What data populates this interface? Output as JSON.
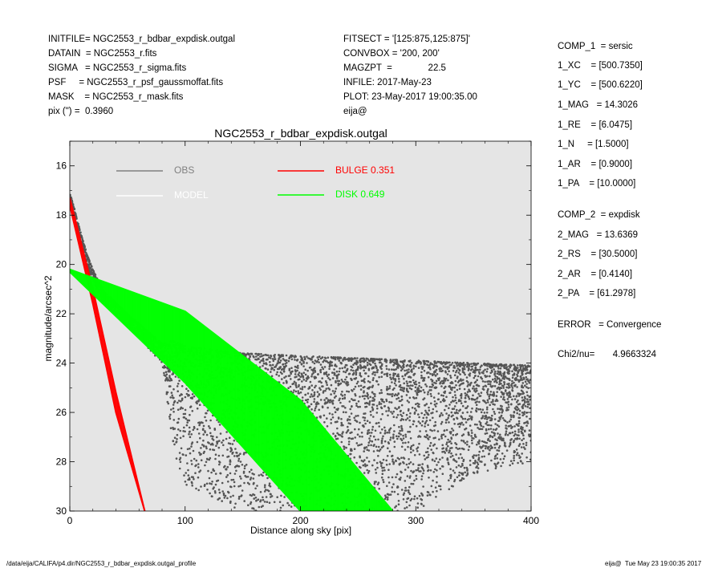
{
  "header": {
    "left": [
      "INITFILE= NGC2553_r_bdbar_expdisk.outgal",
      "DATAIN  = NGC2553_r.fits",
      "SIGMA   = NGC2553_r_sigma.fits",
      "PSF     = NGC2553_r_psf_gaussmoffat.fits",
      "MASK    = NGC2553_r_mask.fits",
      "pix (\") =  0.3960"
    ],
    "mid": [
      "FITSECT = '[125:875,125:875]'",
      "CONVBOX = '200, 200'",
      "MAGZPT  =              22.5",
      "INFILE: 2017-May-23",
      "PLOT: 23-May-2017 19:00:35.00",
      "eija@"
    ]
  },
  "params": [
    "COMP_1  = sersic",
    "1_XC    = [500.7350]",
    "1_YC    = [500.6220]",
    "1_MAG   = 14.3026",
    "1_RE    = [6.0475]",
    "1_N     = [1.5000]",
    "1_AR    = [0.9000]",
    "1_PA    = [10.0000]",
    "COMP_2  = expdisk",
    "2_MAG   = 13.6369",
    "2_RS    = [30.5000]",
    "2_AR    = [0.4140]",
    "2_PA    = [61.2978]",
    "ERROR   = Convergence",
    "Chi2/nu=       4.9663324"
  ],
  "footer": {
    "left": "/data/eija/CALIFA/p4.dir/NGC2553_r_bdbar_expdisk.outgal_profile",
    "right": "eija@  Tue May 23 19:00:35 2017"
  },
  "colors": {
    "background": "#e5e5e5",
    "obs": "#555555",
    "obs_legend": "#808080",
    "model": "#ffffff",
    "bulge": "#ff0000",
    "disk": "#00ff00"
  },
  "chart_data": {
    "type": "scatter",
    "title": "NGC2553_r_bdbar_expdisk.outgal",
    "xlabel": "Distance along sky [pix]",
    "ylabel": "magnitude/arcsec^2",
    "xlim": [
      0,
      400
    ],
    "ylim": [
      30,
      15
    ],
    "y_inverted": true,
    "xticks": [
      0,
      100,
      200,
      300,
      400
    ],
    "yticks": [
      16,
      18,
      20,
      22,
      24,
      26,
      28,
      30
    ],
    "legend": [
      {
        "name": "OBS",
        "value": ""
      },
      {
        "name": "MODEL",
        "value": ""
      },
      {
        "name": "BULGE",
        "value": "0.351"
      },
      {
        "name": "DISK",
        "value": "0.649"
      }
    ],
    "series": [
      {
        "name": "OBS",
        "kind": "scatter band",
        "x": [
          0,
          5,
          10,
          15,
          20,
          25,
          30,
          50,
          80,
          90,
          100,
          150,
          200,
          250,
          300,
          350,
          400
        ],
        "y_bright": [
          17.1,
          17.9,
          18.8,
          19.6,
          20.2,
          20.7,
          21.1,
          22.0,
          23.2,
          23.1,
          23.3,
          23.6,
          23.7,
          23.8,
          23.9,
          24.0,
          24.1
        ],
        "y_faint": [
          17.2,
          18.2,
          19.4,
          20.1,
          20.7,
          21.2,
          21.6,
          22.5,
          24.0,
          27.5,
          29.0,
          30.0,
          30.0,
          30.0,
          30.0,
          28.5,
          28.0
        ]
      },
      {
        "name": "BULGE",
        "kind": "line band",
        "x": [
          0,
          20,
          40,
          65
        ],
        "y_bright": [
          17.3,
          21.0,
          25.2,
          30.0
        ],
        "y_faint": [
          17.6,
          21.6,
          26.0,
          30.0
        ]
      },
      {
        "name": "DISK",
        "kind": "line band",
        "x": [
          0,
          100,
          200,
          280
        ],
        "y_bright": [
          20.2,
          21.9,
          25.5,
          30.0
        ],
        "y_faint": [
          20.3,
          24.8,
          30.0,
          30.0
        ]
      }
    ]
  }
}
